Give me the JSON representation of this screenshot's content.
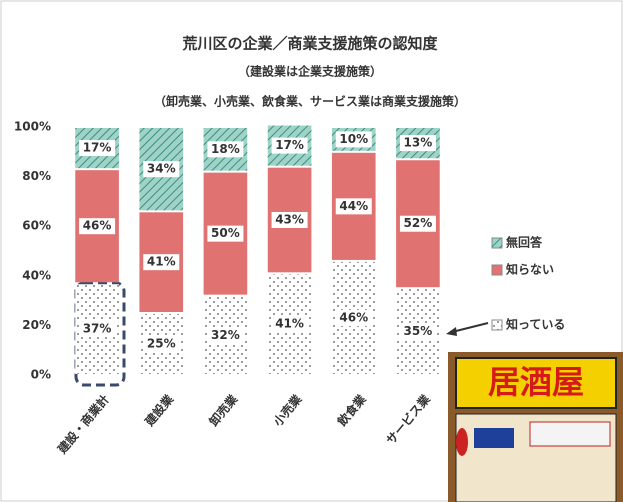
{
  "chart_data": {
    "type": "stacked_bar",
    "title": "荒川区の企業／商業支援施策の認知度",
    "subtitles": [
      "（建設業は企業支援施策）",
      "（卸売業、小売業、飲食業、サービス業は商業支援施策）"
    ],
    "categories": [
      "建設・商業計",
      "建設業",
      "卸売業",
      "小売業",
      "飲食業",
      "サービス業"
    ],
    "series": [
      {
        "name": "知っている",
        "color": "#ffffff",
        "pattern": "dots",
        "values": [
          37,
          25,
          32,
          41,
          46,
          35
        ],
        "value_labels": [
          "37%",
          "25%",
          "32%",
          "41%",
          "46%",
          "35%"
        ]
      },
      {
        "name": "知らない",
        "color": "#e07272",
        "pattern": "solid",
        "values": [
          46,
          41,
          50,
          43,
          44,
          52
        ],
        "value_labels": [
          "46%",
          "41%",
          "50%",
          "43%",
          "44%",
          "52%"
        ]
      },
      {
        "name": "無回答",
        "color": "#9fd3c7",
        "pattern": "hatch",
        "values": [
          17,
          34,
          18,
          17,
          10,
          13
        ],
        "value_labels": [
          "17%",
          "34%",
          "18%",
          "17%",
          "10%",
          "13%"
        ]
      }
    ],
    "ylim": [
      0,
      100
    ],
    "yticks": [
      {
        "value": 0,
        "label": "0%"
      },
      {
        "value": 20,
        "label": "20%"
      },
      {
        "value": 40,
        "label": "40%"
      },
      {
        "value": 60,
        "label": "60%"
      },
      {
        "value": 80,
        "label": "80%"
      },
      {
        "value": 100,
        "label": "100%"
      }
    ],
    "grid": false,
    "legend": "right"
  },
  "illustration": {
    "sign": "居酒屋"
  }
}
